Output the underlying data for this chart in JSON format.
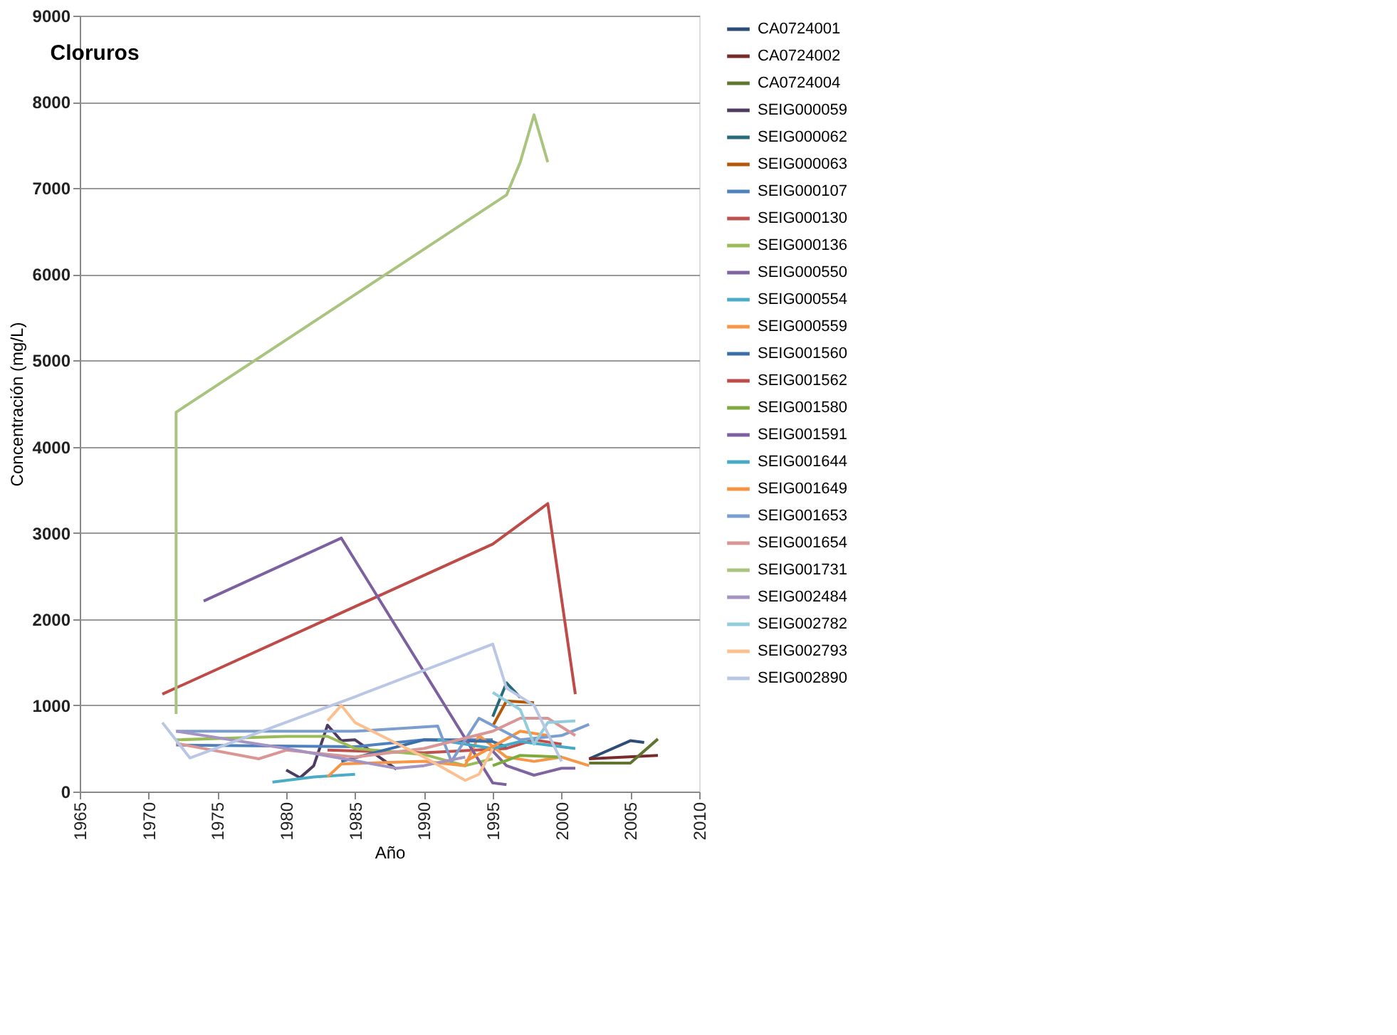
{
  "chart_data": {
    "type": "line",
    "title": "Cloruros",
    "xlabel": "Año",
    "ylabel": "Concentración (mg/L)",
    "xlim": [
      1965,
      2010
    ],
    "xticks": [
      1965,
      1970,
      1975,
      1980,
      1985,
      1990,
      1995,
      2000,
      2005,
      2010
    ],
    "ylim": [
      0,
      9000
    ],
    "yticks": [
      0,
      1000,
      2000,
      3000,
      4000,
      5000,
      6000,
      7000,
      8000,
      9000
    ],
    "grid": "y",
    "legend": "right",
    "marker": "none",
    "line_style": "solid",
    "series": [
      {
        "name": "CA0724001",
        "color": "#2c4d75",
        "x": [
          2002,
          2005,
          2006
        ],
        "values": [
          380,
          590,
          570
        ]
      },
      {
        "name": "CA0724002",
        "color": "#772c2a",
        "x": [
          2002,
          2007
        ],
        "values": [
          380,
          420
        ]
      },
      {
        "name": "CA0724004",
        "color": "#5f7530",
        "x": [
          2002,
          2005,
          2007
        ],
        "values": [
          330,
          330,
          610
        ]
      },
      {
        "name": "SEIG000059",
        "color": "#4d3b62",
        "x": [
          1980,
          1981,
          1982,
          1983,
          1984,
          1985,
          1988
        ],
        "values": [
          250,
          160,
          300,
          770,
          590,
          600,
          260
        ]
      },
      {
        "name": "SEIG000062",
        "color": "#276a7c",
        "x": [
          1995,
          1996,
          1997
        ],
        "values": [
          870,
          1260,
          1090
        ]
      },
      {
        "name": "SEIG000063",
        "color": "#b65708",
        "x": [
          1995,
          1996,
          1998
        ],
        "values": [
          760,
          1050,
          1030
        ]
      },
      {
        "name": "SEIG000107",
        "color": "#4f81bd",
        "x": [
          1972,
          1985,
          1990,
          1995
        ],
        "values": [
          540,
          520,
          600,
          600
        ]
      },
      {
        "name": "SEIG000130",
        "color": "#c0504d",
        "x": [
          1983,
          1990,
          1996,
          1998,
          2000
        ],
        "values": [
          480,
          450,
          500,
          600,
          550
        ]
      },
      {
        "name": "SEIG000136",
        "color": "#9bbb59",
        "x": [
          1972,
          1980,
          1983,
          1985,
          1990,
          1993,
          1995
        ],
        "values": [
          600,
          640,
          640,
          500,
          430,
          300,
          380
        ]
      },
      {
        "name": "SEIG000550",
        "color": "#8064a2",
        "x": [
          1995,
          1996,
          1998,
          2000,
          2001
        ],
        "values": [
          470,
          300,
          190,
          270,
          270
        ]
      },
      {
        "name": "SEIG000554",
        "color": "#4bacc6",
        "x": [
          1979,
          1982,
          1985
        ],
        "values": [
          110,
          170,
          200
        ]
      },
      {
        "name": "SEIG000559",
        "color": "#f79646",
        "x": [
          1983,
          1984,
          1990,
          1993,
          1994,
          1996,
          1998,
          2000,
          2002
        ],
        "values": [
          170,
          320,
          350,
          300,
          650,
          400,
          350,
          400,
          300
        ]
      },
      {
        "name": "SEIG001560",
        "color": "#3a6ea8",
        "x": [
          1984,
          1990,
          1995,
          1996
        ],
        "values": [
          350,
          600,
          580,
          520
        ]
      },
      {
        "name": "SEIG001562",
        "color": "#be4b48",
        "x": [
          1971,
          1995,
          1999,
          2001
        ],
        "values": [
          1130,
          2870,
          3340,
          1130
        ]
      },
      {
        "name": "SEIG001580",
        "color": "#7fab3c",
        "x": [
          1995,
          1997,
          2000
        ],
        "values": [
          300,
          420,
          400
        ]
      },
      {
        "name": "SEIG001591",
        "color": "#7d60a0",
        "x": [
          1974,
          1984,
          1995,
          1996
        ],
        "values": [
          2210,
          2940,
          100,
          80
        ]
      },
      {
        "name": "SEIG001644",
        "color": "#46aac5",
        "x": [
          1991,
          1995,
          1997,
          2001
        ],
        "values": [
          600,
          500,
          580,
          500
        ]
      },
      {
        "name": "SEIG001649",
        "color": "#f69240",
        "x": [
          1993,
          1995,
          1997,
          1999
        ],
        "values": [
          350,
          520,
          700,
          650
        ]
      },
      {
        "name": "SEIG001653",
        "color": "#7c9ecf",
        "x": [
          1972,
          1985,
          1991,
          1992,
          1994,
          1997,
          2000,
          2002
        ],
        "values": [
          700,
          700,
          760,
          350,
          850,
          600,
          650,
          780
        ]
      },
      {
        "name": "SEIG001654",
        "color": "#d99694",
        "x": [
          1972,
          1978,
          1980,
          1985,
          1990,
          1995,
          1997,
          1999,
          2001
        ],
        "values": [
          560,
          380,
          480,
          400,
          500,
          700,
          850,
          850,
          650
        ]
      },
      {
        "name": "SEIG001731",
        "color": "#a9c47f",
        "x": [
          1972,
          1972,
          1996,
          1997,
          1998,
          1999
        ],
        "values": [
          900,
          4400,
          6920,
          7300,
          7850,
          7300
        ]
      },
      {
        "name": "SEIG002484",
        "color": "#a593c2",
        "x": [
          1972,
          1980,
          1988,
          1990,
          1993
        ],
        "values": [
          700,
          500,
          270,
          300,
          400
        ]
      },
      {
        "name": "SEIG002782",
        "color": "#93cddd",
        "x": [
          1995,
          1997,
          1998,
          1999,
          2001
        ],
        "values": [
          1150,
          950,
          550,
          800,
          820
        ]
      },
      {
        "name": "SEIG002793",
        "color": "#fac090",
        "x": [
          1983,
          1984,
          1985,
          1990,
          1993,
          1994,
          1995
        ],
        "values": [
          820,
          1000,
          800,
          400,
          130,
          200,
          500
        ]
      },
      {
        "name": "SEIG002890",
        "color": "#b9c7e5",
        "x": [
          1971,
          1973,
          1985,
          1995,
          1996,
          1998,
          2000
        ],
        "values": [
          800,
          390,
          1100,
          1710,
          1200,
          1000,
          350
        ]
      }
    ]
  }
}
